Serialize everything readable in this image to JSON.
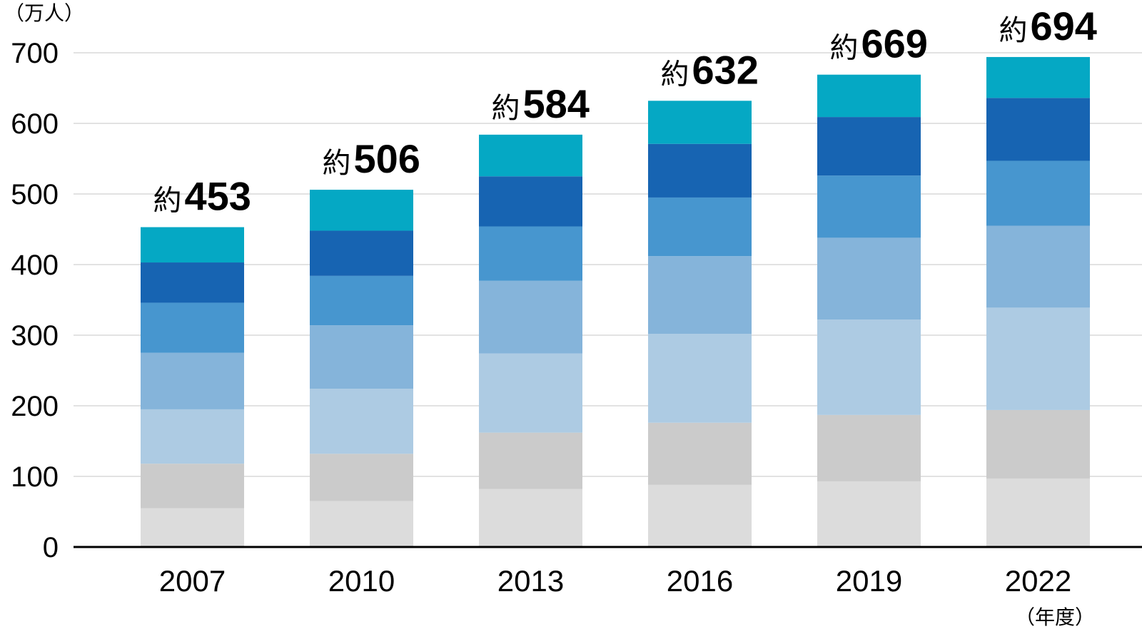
{
  "chart_data": {
    "type": "bar",
    "stacked": true,
    "yunit": "（万人）",
    "xunit": "（年度）",
    "categories": [
      "2007",
      "2010",
      "2013",
      "2016",
      "2019",
      "2022"
    ],
    "yticks": [
      "0",
      "100",
      "200",
      "300",
      "400",
      "500",
      "600",
      "700"
    ],
    "ylim": [
      0,
      700
    ],
    "series": [
      {
        "name": "s1",
        "color": "#dcdcdc",
        "values": [
          55,
          65,
          82,
          88,
          93,
          97
        ]
      },
      {
        "name": "s2",
        "color": "#cbcbcb",
        "values": [
          63,
          67,
          80,
          88,
          94,
          97
        ]
      },
      {
        "name": "s3",
        "color": "#adcbe3",
        "values": [
          77,
          92,
          112,
          126,
          135,
          145
        ]
      },
      {
        "name": "s4",
        "color": "#85b4da",
        "values": [
          80,
          90,
          103,
          110,
          116,
          116
        ]
      },
      {
        "name": "s5",
        "color": "#4796cf",
        "values": [
          71,
          70,
          77,
          83,
          88,
          92
        ]
      },
      {
        "name": "s6",
        "color": "#1764b2",
        "values": [
          57,
          64,
          71,
          76,
          83,
          89
        ]
      },
      {
        "name": "s7",
        "color": "#05a8c4",
        "values": [
          50,
          58,
          59,
          61,
          60,
          58
        ]
      }
    ],
    "totals": [
      453,
      506,
      584,
      632,
      669,
      694
    ],
    "total_prefix": "約",
    "total_labels": [
      "453",
      "506",
      "584",
      "632",
      "669",
      "694"
    ]
  }
}
